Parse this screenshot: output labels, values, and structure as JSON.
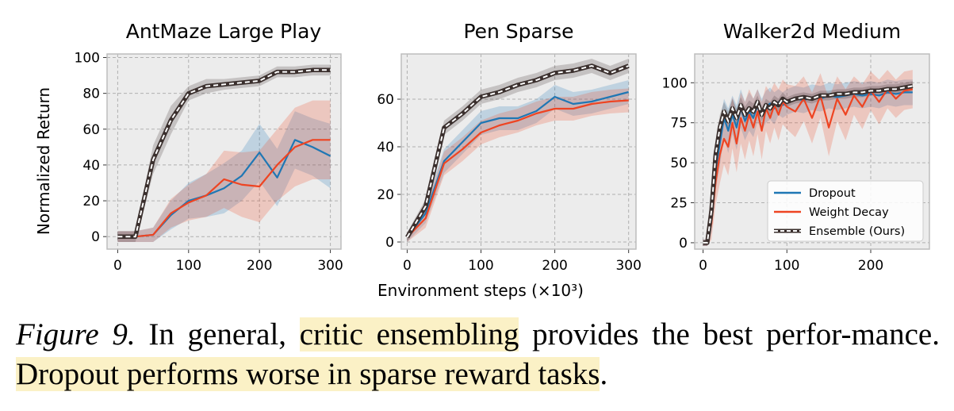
{
  "figure": {
    "xlabel": "Environment steps (×10³)",
    "ylabel": "Normalized Return",
    "legend": {
      "dropout": "Dropout",
      "weight_decay": "Weight Decay",
      "ensemble": "Ensemble (Ours)"
    },
    "caption": {
      "label": "Figure 9.",
      "text_1": " In general, ",
      "highlight_1": "critic ensembling",
      "text_2": " provides the best perfor-mance. ",
      "highlight_2": "Dropout performs worse in sparse reward tasks",
      "text_3": "."
    },
    "colors": {
      "dropout": "#1f77b4",
      "weight_decay": "#ee4422",
      "ensemble": "#3a2f2d",
      "highlight": "#fbf1c6",
      "plot_bg": "#ececec"
    }
  },
  "chart_data": [
    {
      "type": "line",
      "title": "AntMaze Large Play",
      "xlim": [
        -15,
        315
      ],
      "ylim": [
        -7,
        102
      ],
      "xticks": [
        0,
        100,
        200,
        300
      ],
      "yticks": [
        0,
        20,
        40,
        60,
        80,
        100
      ],
      "grid": true,
      "series": [
        {
          "name": "Dropout",
          "color": "#1f77b4",
          "x": [
            0,
            25,
            50,
            75,
            100,
            125,
            150,
            175,
            200,
            225,
            250,
            275,
            300
          ],
          "y": [
            0,
            0,
            1,
            12,
            20,
            23,
            27,
            34,
            47,
            33,
            54,
            50,
            45
          ],
          "band": [
            3,
            3,
            4,
            8,
            10,
            12,
            14,
            14,
            16,
            16,
            16,
            16,
            18
          ]
        },
        {
          "name": "Weight Decay",
          "color": "#ee4422",
          "x": [
            0,
            25,
            50,
            75,
            100,
            125,
            150,
            175,
            200,
            225,
            250,
            275,
            300
          ],
          "y": [
            0,
            0,
            1,
            13,
            19,
            23,
            32,
            29,
            28,
            40,
            50,
            54,
            54
          ],
          "band": [
            3,
            3,
            4,
            8,
            10,
            12,
            16,
            18,
            20,
            20,
            22,
            22,
            22
          ]
        },
        {
          "name": "Ensemble (Ours)",
          "color": "#3a2f2d",
          "x": [
            0,
            25,
            50,
            75,
            100,
            125,
            150,
            175,
            200,
            225,
            250,
            275,
            300
          ],
          "y": [
            0,
            0,
            43,
            65,
            80,
            84,
            85,
            86,
            87,
            92,
            92,
            93,
            93
          ],
          "band": [
            3,
            3,
            8,
            8,
            4,
            4,
            3,
            3,
            3,
            3,
            3,
            3,
            3
          ]
        }
      ]
    },
    {
      "type": "line",
      "title": "Pen Sparse",
      "xlim": [
        -8,
        310
      ],
      "ylim": [
        -3,
        79
      ],
      "xticks": [
        0,
        100,
        200,
        300
      ],
      "yticks": [
        0,
        20,
        40,
        60
      ],
      "grid": true,
      "series": [
        {
          "name": "Dropout",
          "color": "#1f77b4",
          "x": [
            0,
            25,
            50,
            75,
            100,
            125,
            150,
            175,
            200,
            225,
            250,
            275,
            300
          ],
          "y": [
            2,
            12,
            34,
            42,
            50,
            52,
            52,
            55,
            61,
            58,
            59,
            61,
            63
          ],
          "band": [
            2,
            4,
            5,
            5,
            5,
            5,
            5,
            5,
            5,
            5,
            5,
            5,
            5
          ]
        },
        {
          "name": "Weight Decay",
          "color": "#ee4422",
          "x": [
            0,
            25,
            50,
            75,
            100,
            125,
            150,
            175,
            200,
            225,
            250,
            275,
            300
          ],
          "y": [
            2,
            10,
            33,
            39,
            46,
            49,
            51,
            54,
            56,
            56,
            58,
            59,
            59.5
          ],
          "band": [
            2,
            4,
            5,
            5,
            5,
            5,
            5,
            5,
            5,
            5,
            5,
            5,
            5
          ]
        },
        {
          "name": "Ensemble (Ours)",
          "color": "#3a2f2d",
          "x": [
            0,
            25,
            50,
            75,
            100,
            125,
            150,
            175,
            200,
            225,
            250,
            275,
            300
          ],
          "y": [
            2,
            15,
            48,
            54,
            61,
            63,
            66,
            68,
            71,
            72,
            74,
            71,
            74
          ],
          "band": [
            2,
            3,
            3,
            3,
            3,
            3,
            3,
            3,
            3,
            3,
            3,
            3,
            3
          ]
        }
      ]
    },
    {
      "type": "line",
      "title": "Walker2d Medium",
      "xlim": [
        -10,
        270
      ],
      "ylim": [
        -4,
        118
      ],
      "xticks": [
        0,
        100,
        200
      ],
      "yticks": [
        0,
        25,
        50,
        75,
        100
      ],
      "grid": true,
      "legend_position": "bottom-right",
      "series": [
        {
          "name": "Dropout",
          "color": "#1f77b4",
          "x": [
            0,
            5,
            10,
            15,
            20,
            25,
            30,
            35,
            40,
            45,
            50,
            55,
            60,
            65,
            70,
            75,
            80,
            85,
            90,
            95,
            100,
            110,
            120,
            130,
            140,
            150,
            160,
            170,
            180,
            190,
            200,
            210,
            220,
            230,
            240,
            250
          ],
          "y": [
            0,
            0,
            15,
            45,
            62,
            78,
            70,
            80,
            72,
            84,
            76,
            82,
            78,
            86,
            80,
            85,
            87,
            84,
            88,
            86,
            88,
            90,
            89,
            91,
            90,
            92,
            91,
            92,
            93,
            92,
            93,
            92,
            94,
            93,
            94,
            94
          ],
          "band": [
            2,
            2,
            8,
            12,
            14,
            12,
            14,
            12,
            14,
            12,
            12,
            12,
            12,
            10,
            10,
            10,
            10,
            10,
            8,
            8,
            8,
            8,
            8,
            8,
            8,
            8,
            8,
            8,
            8,
            8,
            8,
            8,
            8,
            8,
            8,
            8
          ]
        },
        {
          "name": "Weight Decay",
          "color": "#ee4422",
          "x": [
            0,
            5,
            10,
            15,
            20,
            25,
            30,
            35,
            40,
            45,
            50,
            55,
            60,
            65,
            70,
            75,
            80,
            85,
            90,
            95,
            100,
            110,
            120,
            130,
            140,
            150,
            160,
            170,
            180,
            190,
            200,
            210,
            220,
            230,
            240,
            250
          ],
          "y": [
            0,
            0,
            12,
            38,
            55,
            65,
            60,
            75,
            62,
            78,
            70,
            80,
            72,
            82,
            70,
            84,
            78,
            86,
            80,
            88,
            85,
            82,
            90,
            78,
            92,
            72,
            90,
            80,
            92,
            85,
            95,
            88,
            96,
            90,
            95,
            96
          ],
          "band": [
            2,
            2,
            10,
            14,
            18,
            16,
            18,
            16,
            18,
            16,
            18,
            16,
            18,
            14,
            18,
            14,
            16,
            14,
            16,
            14,
            14,
            16,
            14,
            16,
            14,
            18,
            14,
            16,
            12,
            14,
            12,
            14,
            12,
            12,
            12,
            12
          ]
        },
        {
          "name": "Ensemble (Ours)",
          "color": "#3a2f2d",
          "x": [
            0,
            5,
            10,
            15,
            20,
            25,
            30,
            35,
            40,
            45,
            50,
            55,
            60,
            65,
            70,
            75,
            80,
            85,
            90,
            95,
            100,
            110,
            120,
            130,
            140,
            150,
            160,
            170,
            180,
            190,
            200,
            210,
            220,
            230,
            240,
            250
          ],
          "y": [
            0,
            0,
            20,
            55,
            72,
            82,
            76,
            84,
            78,
            86,
            80,
            84,
            82,
            88,
            80,
            86,
            84,
            88,
            86,
            90,
            88,
            90,
            91,
            90,
            92,
            92,
            93,
            93,
            94,
            94,
            95,
            95,
            96,
            96,
            97,
            98
          ],
          "band": [
            2,
            2,
            6,
            8,
            8,
            6,
            6,
            6,
            6,
            5,
            5,
            5,
            5,
            4,
            4,
            4,
            4,
            4,
            4,
            4,
            3,
            3,
            3,
            3,
            3,
            3,
            3,
            3,
            3,
            3,
            3,
            3,
            3,
            3,
            3,
            3
          ]
        }
      ]
    }
  ]
}
